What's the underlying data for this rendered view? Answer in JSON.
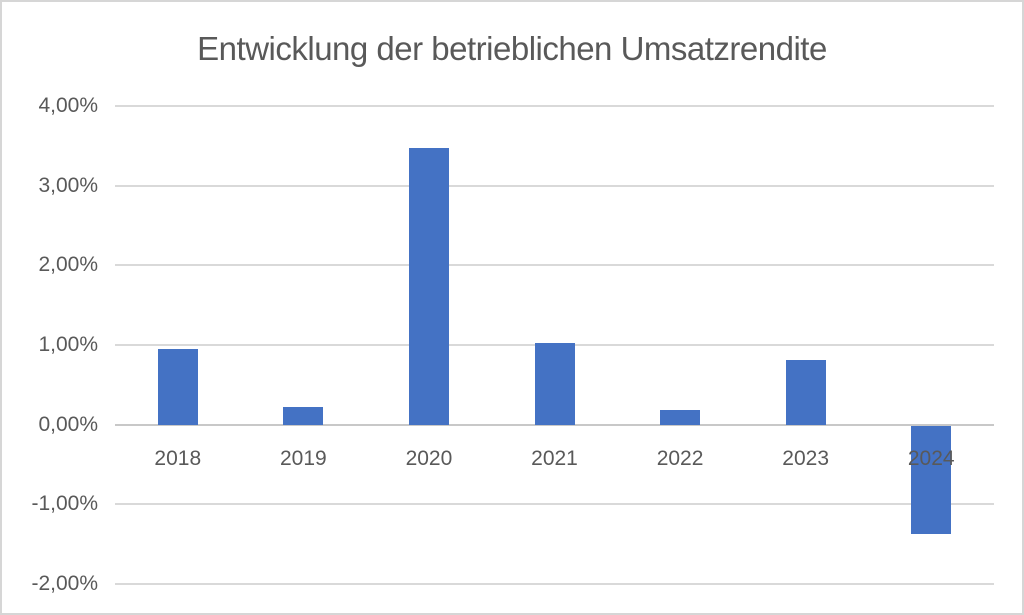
{
  "title": "Entwicklung der betrieblichen Umsatzrendite",
  "colors": {
    "bar": "#4472c4",
    "gridline": "#d9d9d9",
    "axis_line": "#c8c8c8",
    "text": "#595959",
    "frame_border": "#d6d6d6",
    "background": "#ffffff"
  },
  "chart_data": {
    "type": "bar",
    "title": "Entwicklung der betrieblichen Umsatzrendite",
    "categories": [
      "2018",
      "2019",
      "2020",
      "2021",
      "2022",
      "2023",
      "2024"
    ],
    "values": [
      0.95,
      0.22,
      3.47,
      1.02,
      0.18,
      0.81,
      -1.37
    ],
    "series_name": "Umsatzrendite",
    "xlabel": "",
    "ylabel": "",
    "ylim": [
      -2,
      4
    ],
    "ytick_step": 1,
    "yticks": [
      4,
      3,
      2,
      1,
      0,
      -1,
      -2
    ],
    "ytick_labels": [
      "4,00%",
      "3,00%",
      "2,00%",
      "1,00%",
      "0,00%",
      "-1,00%",
      "-2,00%"
    ],
    "grid": true,
    "legend": false,
    "value_format": "0,00%"
  }
}
